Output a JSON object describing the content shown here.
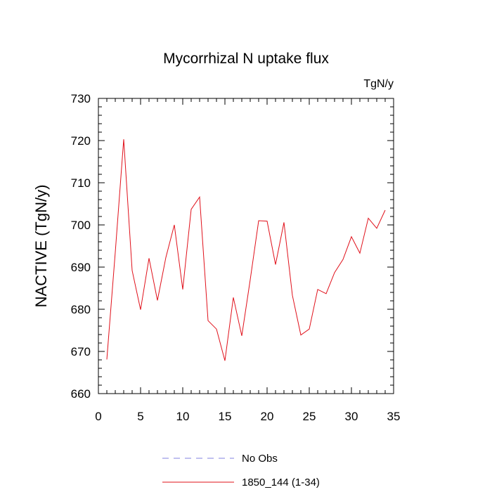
{
  "chart_data": {
    "type": "line",
    "title": "Mycorrhizal N uptake flux",
    "units_label": "TgN/y",
    "xlabel": "",
    "ylabel": "NACTIVE  (TgN/y)",
    "xlim": [
      0,
      35
    ],
    "ylim": [
      660,
      730
    ],
    "x_ticks": [
      0,
      5,
      10,
      15,
      20,
      25,
      30,
      35
    ],
    "y_ticks": [
      660,
      670,
      680,
      690,
      700,
      710,
      720,
      730
    ],
    "grid": false,
    "legend_position": "bottom",
    "legend": [
      {
        "name": "No Obs",
        "color": "#8080e0",
        "style": "dashed"
      },
      {
        "name": "1850_144 (1-34)",
        "color": "#e0101a",
        "style": "solid"
      }
    ],
    "series": [
      {
        "name": "1850_144 (1-34)",
        "color": "#e0101a",
        "x": [
          1,
          2,
          3,
          4,
          5,
          6,
          7,
          8,
          9,
          10,
          11,
          12,
          13,
          14,
          15,
          16,
          17,
          18,
          19,
          20,
          21,
          22,
          23,
          24,
          25,
          26,
          27,
          28,
          29,
          30,
          31,
          32,
          33,
          34
        ],
        "values": [
          668.1,
          693.5,
          720.3,
          689.2,
          679.9,
          692.1,
          682.1,
          692.3,
          700.0,
          684.7,
          703.7,
          706.6,
          677.3,
          675.3,
          667.8,
          682.8,
          673.7,
          687.0,
          701.0,
          700.9,
          690.6,
          700.6,
          683.3,
          673.9,
          675.3,
          684.7,
          683.7,
          688.7,
          691.8,
          697.2,
          693.3,
          701.6,
          699.2,
          703.5
        ]
      }
    ]
  }
}
